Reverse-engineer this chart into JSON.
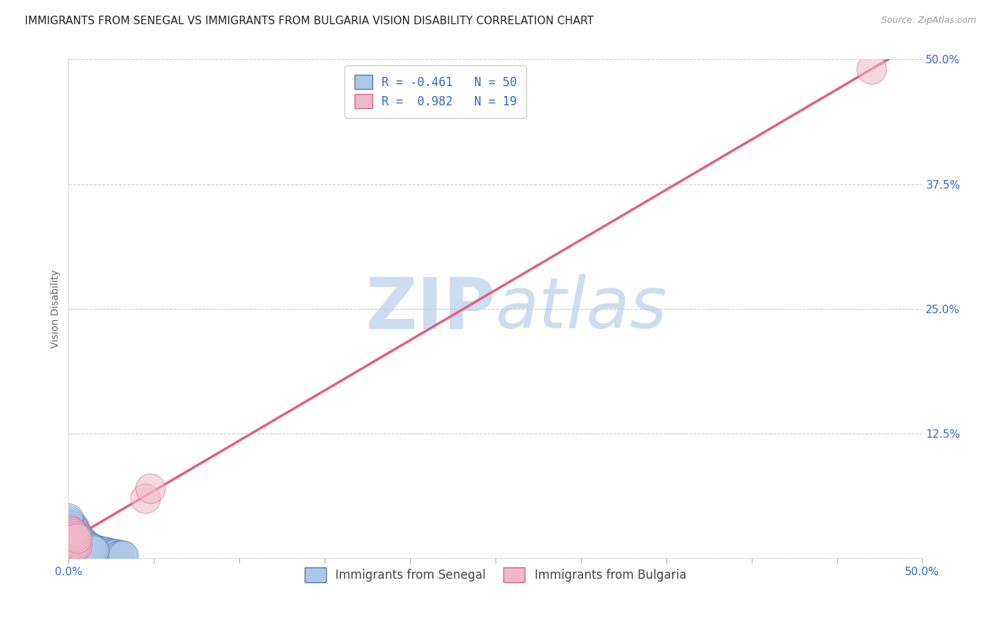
{
  "title": "IMMIGRANTS FROM SENEGAL VS IMMIGRANTS FROM BULGARIA VISION DISABILITY CORRELATION CHART",
  "source": "Source: ZipAtlas.com",
  "ylabel": "Vision Disability",
  "xlim": [
    0.0,
    0.5
  ],
  "ylim": [
    0.0,
    0.5
  ],
  "xticks": [
    0.0,
    0.05,
    0.1,
    0.15,
    0.2,
    0.25,
    0.3,
    0.35,
    0.4,
    0.45,
    0.5
  ],
  "yticks": [
    0.0,
    0.125,
    0.25,
    0.375,
    0.5
  ],
  "ytick_labels": [
    "",
    "12.5%",
    "25.0%",
    "37.5%",
    "50.0%"
  ],
  "grid_color": "#cccccc",
  "background_color": "#ffffff",
  "watermark_text": "ZIPAtlas",
  "watermark_color": "#ccddf0",
  "senegal_color": "#aec8e8",
  "senegal_edge_color": "#5577aa",
  "senegal_R": -0.461,
  "senegal_N": 50,
  "senegal_trend_color": "#9999bb",
  "senegal_trend_style": "--",
  "bulgaria_color": "#f0b8c8",
  "bulgaria_edge_color": "#cc6688",
  "bulgaria_R": 0.982,
  "bulgaria_N": 19,
  "bulgaria_trend_color": "#e06080",
  "bulgaria_trend_style": "-",
  "tick_color": "#3366cc",
  "title_fontsize": 11,
  "axis_label_fontsize": 10,
  "tick_fontsize": 11,
  "legend_fontsize": 12,
  "senegal_x": [
    0.002,
    0.003,
    0.004,
    0.005,
    0.006,
    0.007,
    0.008,
    0.009,
    0.01,
    0.011,
    0.012,
    0.013,
    0.014,
    0.015,
    0.016,
    0.017,
    0.018,
    0.019,
    0.02,
    0.021,
    0.022,
    0.023,
    0.024,
    0.025,
    0.026,
    0.027,
    0.028,
    0.029,
    0.03,
    0.031,
    0.032,
    0.001,
    0.001,
    0.002,
    0.003,
    0.003,
    0.004,
    0.005,
    0.006,
    0.007,
    0.008,
    0.009,
    0.01,
    0.011,
    0.012,
    0.013,
    0.014,
    0.015,
    0.0,
    0.0
  ],
  "senegal_y": [
    0.03,
    0.028,
    0.025,
    0.022,
    0.02,
    0.018,
    0.016,
    0.015,
    0.013,
    0.012,
    0.011,
    0.01,
    0.009,
    0.009,
    0.008,
    0.008,
    0.007,
    0.007,
    0.006,
    0.006,
    0.006,
    0.005,
    0.005,
    0.005,
    0.004,
    0.004,
    0.004,
    0.003,
    0.003,
    0.003,
    0.003,
    0.035,
    0.032,
    0.033,
    0.031,
    0.029,
    0.027,
    0.024,
    0.021,
    0.019,
    0.017,
    0.015,
    0.014,
    0.012,
    0.011,
    0.01,
    0.009,
    0.008,
    0.038,
    0.04
  ],
  "bulgaria_x": [
    0.0,
    0.001,
    0.002,
    0.003,
    0.004,
    0.0,
    0.001,
    0.002,
    0.003,
    0.004,
    0.005,
    0.001,
    0.002,
    0.003,
    0.004,
    0.005,
    0.045,
    0.47,
    0.048
  ],
  "bulgaria_y": [
    0.02,
    0.018,
    0.016,
    0.014,
    0.012,
    0.025,
    0.022,
    0.019,
    0.017,
    0.015,
    0.013,
    0.028,
    0.026,
    0.024,
    0.022,
    0.02,
    0.06,
    0.49,
    0.07
  ],
  "scatter_size": 900
}
